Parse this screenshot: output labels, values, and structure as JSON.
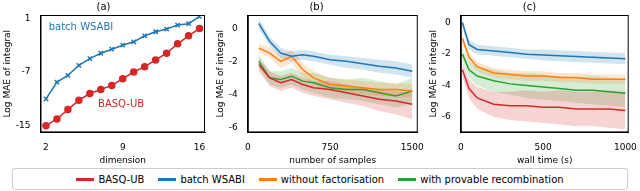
{
  "chart_data": [
    {
      "type": "line",
      "title": "(a)",
      "xlabel": "dimension",
      "ylabel": "Log MAE of integral",
      "x": [
        2,
        3,
        4,
        5,
        6,
        7,
        8,
        9,
        10,
        11,
        12,
        13,
        14,
        15,
        16
      ],
      "xlim": [
        1.5,
        16.5
      ],
      "xticks": [
        2,
        9,
        16
      ],
      "ylim": [
        -16,
        1.5
      ],
      "yticks": [
        -15,
        -7,
        1
      ],
      "grid": false,
      "annotations": [
        {
          "text": "batch WSABI",
          "color": "#1f77b4"
        },
        {
          "text": "BASQ-UB",
          "color": "#d62728"
        }
      ],
      "series": [
        {
          "name": "batch WSABI",
          "color": "#1f77b4",
          "marker": "x",
          "values": [
            -11,
            -8.5,
            -7.5,
            -6,
            -5,
            -4.2,
            -3.6,
            -3,
            -2.5,
            -1.6,
            -1,
            -0.6,
            0,
            0.2,
            1.3
          ]
        },
        {
          "name": "BASQ-UB",
          "color": "#d62728",
          "marker": "o",
          "values": [
            -15,
            -14,
            -12.6,
            -11.2,
            -10.2,
            -9.6,
            -9,
            -8,
            -7,
            -6.2,
            -5.2,
            -4.2,
            -2.8,
            -1.6,
            -0.5
          ]
        }
      ]
    },
    {
      "type": "line",
      "title": "(b)",
      "xlabel": "number of samples",
      "ylabel": "Log MAE of integral",
      "x": [
        100,
        200,
        300,
        400,
        500,
        600,
        750,
        900,
        1050,
        1200,
        1350,
        1500
      ],
      "xlim": [
        0,
        1550
      ],
      "xticks": [
        0,
        750,
        1500
      ],
      "ylim": [
        -6.3,
        0.8
      ],
      "yticks": [
        0,
        -2,
        -4,
        -6
      ],
      "grid": false,
      "legend": "bottom",
      "series": [
        {
          "name": "BASQ-UB",
          "color": "#d62728",
          "values": [
            -2.2,
            -3.0,
            -3.3,
            -3.1,
            -3.4,
            -3.6,
            -3.7,
            -3.9,
            -4.1,
            -4.3,
            -4.4,
            -4.6
          ],
          "lower": [
            -2.6,
            -3.5,
            -3.8,
            -3.6,
            -3.9,
            -4.1,
            -4.3,
            -4.5,
            -4.7,
            -5.0,
            -5.2,
            -5.5
          ],
          "upper": [
            -1.8,
            -2.6,
            -2.9,
            -2.7,
            -3.0,
            -3.2,
            -3.2,
            -3.4,
            -3.6,
            -3.7,
            -3.8,
            -3.9
          ]
        },
        {
          "name": "batch WSABI",
          "color": "#1f77b4",
          "values": [
            0.3,
            -0.8,
            -1.5,
            -1.7,
            -1.6,
            -1.7,
            -1.9,
            -2.0,
            -2.15,
            -2.3,
            -2.4,
            -2.6
          ],
          "lower": [
            0.0,
            -1.1,
            -1.8,
            -2.0,
            -1.9,
            -2.0,
            -2.2,
            -2.4,
            -2.5,
            -2.7,
            -2.8,
            -3.0
          ],
          "upper": [
            0.6,
            -0.5,
            -1.2,
            -1.4,
            -1.3,
            -1.4,
            -1.6,
            -1.7,
            -1.8,
            -1.9,
            -2.0,
            -2.2
          ]
        },
        {
          "name": "without factorisation",
          "color": "#ff7f0e",
          "values": [
            -1.2,
            -1.5,
            -2.0,
            -1.7,
            -2.5,
            -3.0,
            -3.4,
            -3.5,
            -3.6,
            -3.7,
            -3.7,
            -3.8
          ],
          "lower": [
            -1.5,
            -1.8,
            -2.4,
            -2.1,
            -2.9,
            -3.4,
            -3.8,
            -3.9,
            -4.0,
            -4.1,
            -4.1,
            -4.2
          ],
          "upper": [
            -0.9,
            -1.2,
            -1.6,
            -1.3,
            -2.1,
            -2.6,
            -3.0,
            -3.1,
            -3.2,
            -3.3,
            -3.3,
            -3.4
          ]
        },
        {
          "name": "with provable recombination",
          "color": "#2ca02c",
          "values": [
            -2.0,
            -3.0,
            -3.1,
            -2.9,
            -3.2,
            -3.3,
            -3.6,
            -3.7,
            -3.7,
            -3.9,
            -4.1,
            -3.8
          ],
          "lower": [
            -2.4,
            -3.4,
            -3.6,
            -3.4,
            -3.7,
            -3.9,
            -4.2,
            -4.3,
            -4.4,
            -4.6,
            -4.8,
            -4.6
          ],
          "upper": [
            -1.6,
            -2.6,
            -2.6,
            -2.4,
            -2.7,
            -2.7,
            -3.0,
            -3.1,
            -3.0,
            -3.2,
            -3.4,
            -3.0
          ]
        }
      ]
    },
    {
      "type": "line",
      "title": "(c)",
      "xlabel": "wall time (s)",
      "ylabel": "Log MAE of integral",
      "x": [
        10,
        50,
        100,
        200,
        300,
        400,
        500,
        600,
        700,
        800,
        900,
        1000
      ],
      "xlim": [
        0,
        1020
      ],
      "xticks": [
        0,
        500,
        1000
      ],
      "ylim": [
        -7,
        0.5
      ],
      "yticks": [
        0,
        -2,
        -4,
        -6
      ],
      "grid": false,
      "series": [
        {
          "name": "BASQ-UB",
          "color": "#d62728",
          "values": [
            -3.0,
            -4.2,
            -4.8,
            -5.2,
            -5.3,
            -5.3,
            -5.4,
            -5.4,
            -5.5,
            -5.5,
            -5.5,
            -5.6
          ],
          "lower": [
            -3.5,
            -4.8,
            -5.5,
            -6.0,
            -6.2,
            -6.3,
            -6.4,
            -6.5,
            -6.6,
            -6.6,
            -6.7,
            -6.8
          ],
          "upper": [
            -2.5,
            -3.6,
            -4.1,
            -4.4,
            -4.4,
            -4.3,
            -4.4,
            -4.3,
            -4.4,
            -4.4,
            -4.3,
            -4.4
          ]
        },
        {
          "name": "batch WSABI",
          "color": "#1f77b4",
          "values": [
            0.0,
            -1.4,
            -1.7,
            -1.8,
            -1.9,
            -2.0,
            -2.05,
            -2.1,
            -2.15,
            -2.2,
            -2.25,
            -2.3
          ],
          "lower": [
            -0.3,
            -1.7,
            -2.0,
            -2.1,
            -2.2,
            -2.3,
            -2.4,
            -2.45,
            -2.5,
            -2.55,
            -2.6,
            -2.65
          ],
          "upper": [
            0.3,
            -1.1,
            -1.4,
            -1.5,
            -1.6,
            -1.7,
            -1.7,
            -1.75,
            -1.8,
            -1.85,
            -1.9,
            -1.95
          ]
        },
        {
          "name": "without factorisation",
          "color": "#ff7f0e",
          "values": [
            -1.0,
            -2.2,
            -2.8,
            -3.2,
            -3.3,
            -3.4,
            -3.4,
            -3.5,
            -3.5,
            -3.6,
            -3.6,
            -3.6
          ],
          "lower": [
            -1.3,
            -2.5,
            -3.1,
            -3.5,
            -3.6,
            -3.7,
            -3.7,
            -3.8,
            -3.8,
            -3.9,
            -3.9,
            -3.9
          ],
          "upper": [
            -0.7,
            -1.9,
            -2.5,
            -2.9,
            -3.0,
            -3.1,
            -3.1,
            -3.2,
            -3.2,
            -3.3,
            -3.3,
            -3.3
          ]
        },
        {
          "name": "with provable recombination",
          "color": "#2ca02c",
          "values": [
            -2.0,
            -3.0,
            -3.4,
            -3.7,
            -3.9,
            -4.0,
            -4.1,
            -4.2,
            -4.3,
            -4.3,
            -4.4,
            -4.5
          ],
          "lower": [
            -2.4,
            -3.5,
            -4.0,
            -4.4,
            -4.6,
            -4.8,
            -4.9,
            -5.0,
            -5.1,
            -5.2,
            -5.3,
            -5.4
          ],
          "upper": [
            -1.6,
            -2.5,
            -2.8,
            -3.0,
            -3.2,
            -3.2,
            -3.3,
            -3.4,
            -3.5,
            -3.4,
            -3.5,
            -3.6
          ]
        }
      ]
    }
  ]
}
